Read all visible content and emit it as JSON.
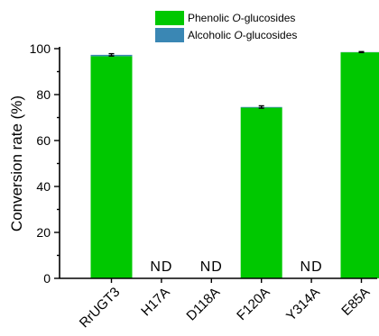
{
  "chart_data": {
    "type": "bar",
    "stacked": true,
    "categories": [
      "RrUGT3",
      "H17A",
      "D118A",
      "F120A",
      "Y314A",
      "E85A"
    ],
    "series": [
      {
        "name": "Phenolic O-glucosides",
        "name_parts": [
          "Phenolic ",
          "O",
          "-glucosides"
        ],
        "color": "#00c800",
        "values": [
          96.7,
          null,
          null,
          74.3,
          null,
          98.4
        ]
      },
      {
        "name": "Alcoholic O-glucosides",
        "name_parts": [
          "Alcoholic ",
          "O",
          "-glucosides"
        ],
        "color": "#3a87b4",
        "values": [
          0.6,
          null,
          null,
          0.3,
          null,
          0.1
        ]
      }
    ],
    "error": [
      0.5,
      null,
      null,
      0.5,
      null,
      0.2
    ],
    "annotations": [
      "",
      "ND",
      "ND",
      "",
      "ND",
      ""
    ],
    "ylabel": "Conversion rate (%)",
    "xlabel": "",
    "title": "",
    "ylim": [
      0,
      100
    ],
    "yticks": [
      0,
      20,
      40,
      60,
      80,
      100
    ],
    "grid": false,
    "legend_position": "top-right"
  }
}
